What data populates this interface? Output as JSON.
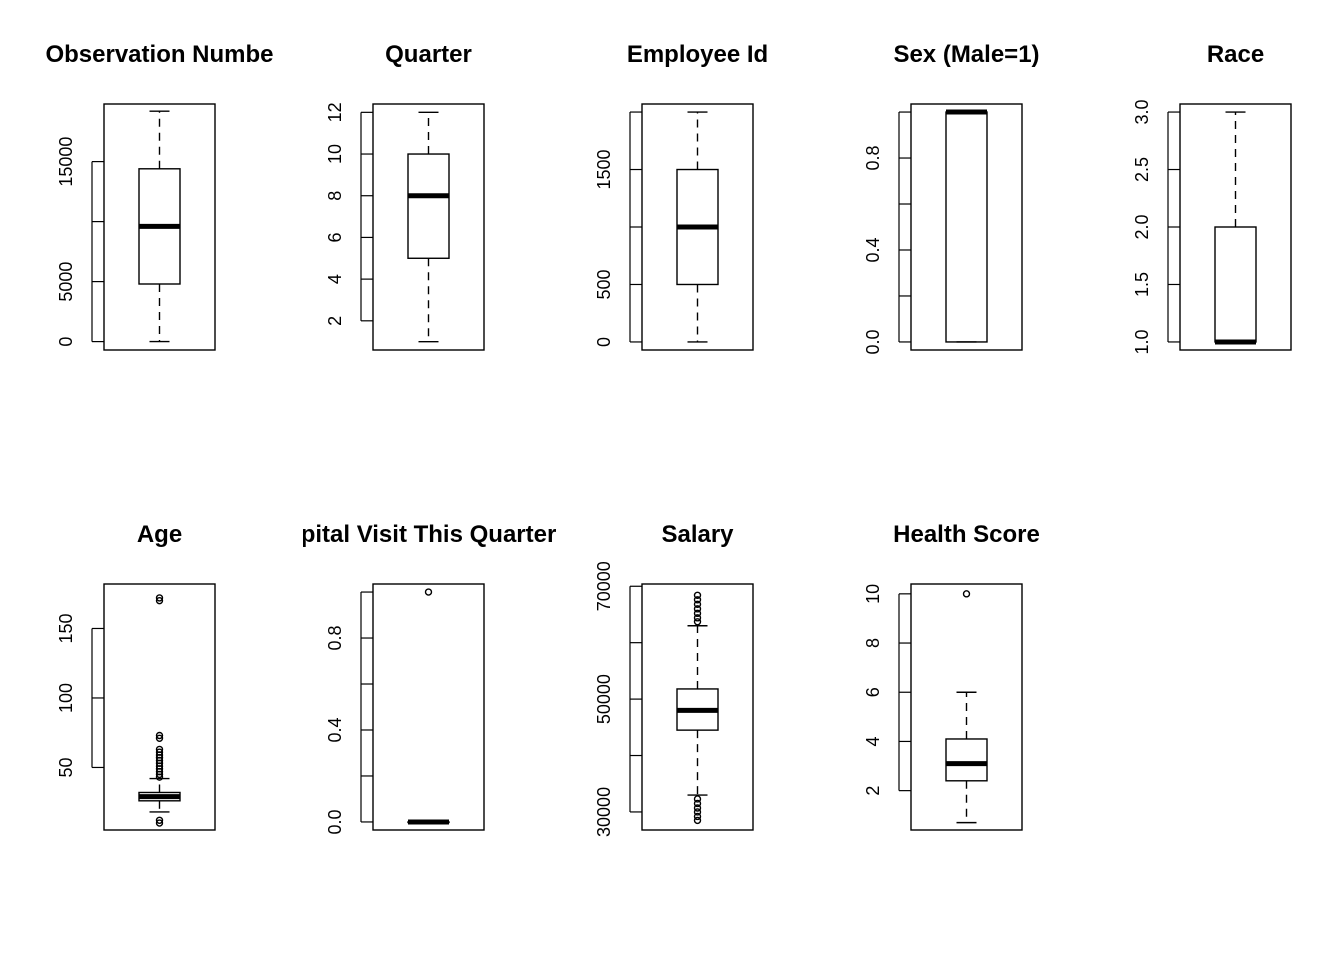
{
  "chart_data": [
    {
      "type": "boxplot",
      "title": "Observation Numbe",
      "ylim": [
        -700,
        19800
      ],
      "ticks": [
        0,
        5000,
        10000,
        15000
      ],
      "tick_labels": [
        "0",
        "5000",
        "",
        "15000"
      ],
      "stats": {
        "min": 0,
        "q1": 4800,
        "median": 9600,
        "q3": 14400,
        "max": 19200
      },
      "outliers": []
    },
    {
      "type": "boxplot",
      "title": "Quarter",
      "ylim": [
        0.6,
        12.4
      ],
      "ticks": [
        2,
        4,
        6,
        8,
        10,
        12
      ],
      "tick_labels": [
        "2",
        "4",
        "6",
        "8",
        "10",
        "12"
      ],
      "stats": {
        "min": 1,
        "q1": 5,
        "median": 8,
        "q3": 10,
        "max": 12
      },
      "outliers": []
    },
    {
      "type": "boxplot",
      "title": "Employee Id",
      "ylim": [
        -70,
        2070
      ],
      "ticks": [
        0,
        500,
        1000,
        1500,
        2000
      ],
      "tick_labels": [
        "0",
        "500",
        "",
        "1500",
        ""
      ],
      "stats": {
        "min": 0,
        "q1": 500,
        "median": 1000,
        "q3": 1500,
        "max": 2000
      },
      "outliers": []
    },
    {
      "type": "boxplot",
      "title": "Sex (Male=1)",
      "ylim": [
        -0.035,
        1.035
      ],
      "ticks": [
        0,
        0.2,
        0.4,
        0.6,
        0.8,
        1.0
      ],
      "tick_labels": [
        "0.0",
        "",
        "0.4",
        "",
        "0.8",
        ""
      ],
      "stats": {
        "min": 0,
        "q1": 0,
        "median": 1,
        "q3": 1,
        "max": 1
      },
      "outliers": []
    },
    {
      "type": "boxplot",
      "title": "Race",
      "ylim": [
        0.93,
        3.07
      ],
      "ticks": [
        1.0,
        1.5,
        2.0,
        2.5,
        3.0
      ],
      "tick_labels": [
        "1.0",
        "1.5",
        "2.0",
        "2.5",
        "3.0"
      ],
      "stats": {
        "min": 1,
        "q1": 1,
        "median": 1,
        "q3": 2,
        "max": 3
      },
      "outliers": []
    },
    {
      "type": "boxplot",
      "title": "Age",
      "ylim": [
        5,
        182
      ],
      "ticks": [
        50,
        100,
        150
      ],
      "tick_labels": [
        "50",
        "100",
        "150"
      ],
      "stats": {
        "min": 18,
        "q1": 26,
        "median": 29,
        "q3": 32,
        "max": 42
      },
      "outliers": [
        10,
        12,
        43,
        45,
        47,
        49,
        51,
        53,
        55,
        57,
        59,
        61,
        63,
        71,
        73,
        170,
        172
      ]
    },
    {
      "type": "boxplot",
      "title": "pital Visit This Quarter",
      "ylim": [
        -0.035,
        1.035
      ],
      "ticks": [
        0,
        0.2,
        0.4,
        0.6,
        0.8,
        1.0
      ],
      "tick_labels": [
        "0.0",
        "",
        "0.4",
        "",
        "0.8",
        ""
      ],
      "stats": {
        "min": 0,
        "q1": 0,
        "median": 0,
        "q3": 0,
        "max": 0
      },
      "outliers": [
        1
      ]
    },
    {
      "type": "boxplot",
      "title": "Salary",
      "ylim": [
        26800,
        70400
      ],
      "ticks": [
        30000,
        40000,
        50000,
        60000,
        70000
      ],
      "tick_labels": [
        "30000",
        "",
        "50000",
        "",
        "70000"
      ],
      "stats": {
        "min": 33000,
        "q1": 44500,
        "median": 48000,
        "q3": 51800,
        "max": 63000
      },
      "outliers": [
        28500,
        29200,
        30000,
        30700,
        31500,
        32300,
        63700,
        64400,
        65200,
        66000,
        66800,
        67600,
        68400
      ]
    },
    {
      "type": "boxplot",
      "title": "Health Score",
      "ylim": [
        0.4,
        10.4
      ],
      "ticks": [
        2,
        4,
        6,
        8,
        10
      ],
      "tick_labels": [
        "2",
        "4",
        "6",
        "8",
        "10"
      ],
      "stats": {
        "min": 0.7,
        "q1": 2.4,
        "median": 3.1,
        "q3": 4.1,
        "max": 6.0
      },
      "outliers": [
        10
      ]
    }
  ]
}
